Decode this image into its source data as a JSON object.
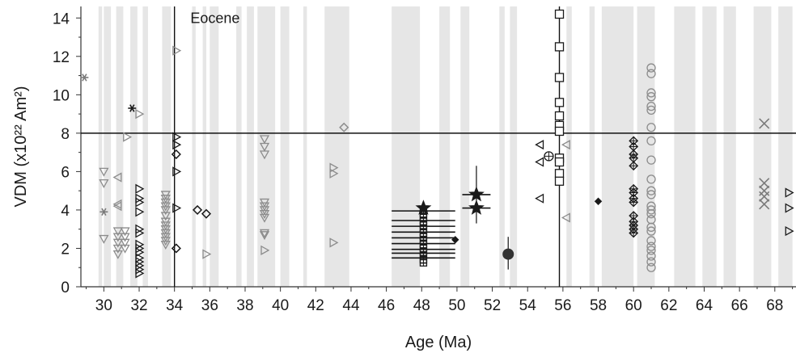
{
  "chart_data": {
    "type": "scatter",
    "xlabel": "Age (Ma)",
    "ylabel": "VDM (x10²² Am²)",
    "xlim": [
      28.7,
      69.2
    ],
    "ylim": [
      0,
      14.6
    ],
    "x_ticks": [
      30,
      32,
      34,
      36,
      38,
      40,
      42,
      44,
      46,
      48,
      50,
      52,
      54,
      56,
      58,
      60,
      62,
      64,
      66,
      68
    ],
    "y_ticks": [
      0,
      2,
      4,
      6,
      8,
      10,
      12,
      14
    ],
    "reference_lines": {
      "horizontal_y": 8,
      "vertical_x": [
        34,
        55.8
      ]
    },
    "annotations": [
      {
        "text": "Eocene",
        "x": 34.9,
        "y": 14.0
      }
    ],
    "bands": [
      [
        29.7,
        29.9
      ],
      [
        30.0,
        30.4
      ],
      [
        30.7,
        31.1
      ],
      [
        31.5,
        31.9
      ],
      [
        32.2,
        32.5
      ],
      [
        33.3,
        33.8
      ],
      [
        35.0,
        35.2
      ],
      [
        35.6,
        35.8
      ],
      [
        36.0,
        36.5
      ],
      [
        37.5,
        37.8
      ],
      [
        38.1,
        38.5
      ],
      [
        38.7,
        39.7
      ],
      [
        40.0,
        40.5
      ],
      [
        41.3,
        41.5
      ],
      [
        42.5,
        43.9
      ],
      [
        46.3,
        47.9
      ],
      [
        49.0,
        49.6
      ],
      [
        50.2,
        50.7
      ],
      [
        52.4,
        52.7
      ],
      [
        53.0,
        53.4
      ],
      [
        56.2,
        56.5
      ],
      [
        57.5,
        57.8
      ],
      [
        58.2,
        60.0
      ],
      [
        60.2,
        61.2
      ],
      [
        62.3,
        63.5
      ],
      [
        63.9,
        64.7
      ],
      [
        65.1,
        65.8
      ],
      [
        66.8,
        67.8
      ],
      [
        68.2,
        69.0
      ]
    ],
    "series": [
      {
        "marker": "asterisk",
        "color": "#7a7a7a",
        "points": [
          [
            28.9,
            10.9
          ],
          [
            30.0,
            3.9
          ]
        ]
      },
      {
        "marker": "asterisk",
        "color": "#1a1a1a",
        "points": [
          [
            31.6,
            9.3
          ]
        ]
      },
      {
        "marker": "tri-down",
        "color": "#8c8c8c",
        "points": [
          [
            30.0,
            6.0
          ],
          [
            30.0,
            5.4
          ],
          [
            30.0,
            2.5
          ],
          [
            30.8,
            2.9
          ],
          [
            30.8,
            2.6
          ],
          [
            30.8,
            2.3
          ],
          [
            30.8,
            2.0
          ],
          [
            30.8,
            1.7
          ],
          [
            31.2,
            2.9
          ],
          [
            31.2,
            2.6
          ],
          [
            31.2,
            2.3
          ],
          [
            31.2,
            2.0
          ],
          [
            33.5,
            4.8
          ],
          [
            33.5,
            4.6
          ],
          [
            33.5,
            4.4
          ],
          [
            33.5,
            4.2
          ],
          [
            33.5,
            4.0
          ],
          [
            33.5,
            3.7
          ],
          [
            33.5,
            3.4
          ],
          [
            33.5,
            3.2
          ],
          [
            33.5,
            3.0
          ],
          [
            33.5,
            2.8
          ],
          [
            33.5,
            2.6
          ],
          [
            33.5,
            2.4
          ],
          [
            33.5,
            2.2
          ],
          [
            39.1,
            7.7
          ],
          [
            39.1,
            7.3
          ],
          [
            39.1,
            6.9
          ],
          [
            39.1,
            4.4
          ],
          [
            39.1,
            4.2
          ],
          [
            39.1,
            4.0
          ],
          [
            39.1,
            3.8
          ],
          [
            39.1,
            3.6
          ],
          [
            39.1,
            2.8
          ],
          [
            39.1,
            2.7
          ]
        ]
      },
      {
        "marker": "tri-left",
        "color": "#8c8c8c",
        "points": [
          [
            30.8,
            5.7
          ],
          [
            30.8,
            4.3
          ],
          [
            30.8,
            4.2
          ],
          [
            56.2,
            7.4
          ],
          [
            56.2,
            3.6
          ]
        ]
      },
      {
        "marker": "tri-right",
        "color": "#8c8c8c",
        "points": [
          [
            31.3,
            7.8
          ],
          [
            32.0,
            9.0
          ],
          [
            34.1,
            12.3
          ],
          [
            35.8,
            1.7
          ],
          [
            39.1,
            1.9
          ],
          [
            43.0,
            6.2
          ],
          [
            43.0,
            5.9
          ],
          [
            43.0,
            2.3
          ]
        ]
      },
      {
        "marker": "tri-right",
        "color": "#1a1a1a",
        "points": [
          [
            32.0,
            5.1
          ],
          [
            32.0,
            4.6
          ],
          [
            32.0,
            4.4
          ],
          [
            32.0,
            3.9
          ],
          [
            32.0,
            3.0
          ],
          [
            32.0,
            2.8
          ],
          [
            32.0,
            2.2
          ],
          [
            32.0,
            2.0
          ],
          [
            32.0,
            1.8
          ],
          [
            32.0,
            1.5
          ],
          [
            32.0,
            1.3
          ],
          [
            32.0,
            1.1
          ],
          [
            32.0,
            0.9
          ],
          [
            32.0,
            0.7
          ],
          [
            34.1,
            7.8
          ],
          [
            34.1,
            7.4
          ],
          [
            34.1,
            6.0
          ],
          [
            34.1,
            4.1
          ]
        ]
      },
      {
        "marker": "tri-left",
        "color": "#1a1a1a",
        "points": [
          [
            54.7,
            7.4
          ],
          [
            54.7,
            6.5
          ],
          [
            54.7,
            4.6
          ]
        ]
      },
      {
        "marker": "tri-right",
        "color": "#1a1a1a",
        "points": [
          [
            68.8,
            4.9
          ],
          [
            68.8,
            4.1
          ],
          [
            68.8,
            2.9
          ]
        ]
      },
      {
        "marker": "diamond-open",
        "color": "#1a1a1a",
        "points": [
          [
            34.1,
            6.9
          ],
          [
            34.1,
            2.0
          ],
          [
            35.3,
            4.0
          ],
          [
            35.8,
            3.8
          ]
        ]
      },
      {
        "marker": "diamond-open",
        "color": "#8c8c8c",
        "points": [
          [
            43.6,
            8.3
          ]
        ]
      },
      {
        "marker": "square-plus",
        "color": "#1a1a1a",
        "points": [
          [
            48.1,
            4.0
          ],
          [
            48.1,
            3.8
          ],
          [
            48.1,
            3.6
          ],
          [
            48.1,
            3.4
          ],
          [
            48.1,
            3.2
          ],
          [
            48.1,
            3.0
          ],
          [
            48.1,
            2.8
          ],
          [
            48.1,
            2.6
          ],
          [
            48.1,
            2.4
          ],
          [
            48.1,
            2.2
          ],
          [
            48.1,
            2.0
          ],
          [
            48.1,
            1.8
          ],
          [
            48.1,
            1.6
          ],
          [
            48.1,
            1.4
          ],
          [
            48.1,
            1.25
          ]
        ]
      },
      {
        "marker": "star",
        "color": "#1a1a1a",
        "points": [
          [
            48.1,
            4.1
          ],
          [
            51.1,
            4.8
          ],
          [
            51.1,
            4.1
          ]
        ]
      },
      {
        "marker": "diamond-filled",
        "color": "#1a1a1a",
        "points": [
          [
            49.9,
            2.45
          ],
          [
            58.0,
            4.45
          ]
        ]
      },
      {
        "marker": "circle-filled",
        "color": "#333333",
        "points": [
          [
            52.9,
            1.7
          ]
        ]
      },
      {
        "marker": "circle-plus",
        "color": "#1a1a1a",
        "points": [
          [
            55.2,
            6.8
          ]
        ]
      },
      {
        "marker": "square-open",
        "color": "#1a1a1a",
        "points": [
          [
            55.8,
            14.2
          ],
          [
            55.8,
            12.5
          ],
          [
            55.8,
            10.9
          ],
          [
            55.8,
            9.6
          ],
          [
            55.8,
            8.9
          ],
          [
            55.8,
            8.4
          ],
          [
            55.8,
            8.1
          ],
          [
            55.8,
            6.7
          ],
          [
            55.8,
            6.5
          ],
          [
            55.8,
            5.9
          ],
          [
            55.8,
            5.5
          ]
        ]
      },
      {
        "marker": "diamond-plus",
        "color": "#1a1a1a",
        "points": [
          [
            60.0,
            7.6
          ],
          [
            60.0,
            7.3
          ],
          [
            60.0,
            6.9
          ],
          [
            60.0,
            6.7
          ],
          [
            60.0,
            6.3
          ],
          [
            60.0,
            5.1
          ],
          [
            60.0,
            4.9
          ],
          [
            60.0,
            4.6
          ],
          [
            60.0,
            4.4
          ],
          [
            60.0,
            3.7
          ],
          [
            60.0,
            3.4
          ],
          [
            60.0,
            3.2
          ],
          [
            60.0,
            3.0
          ],
          [
            60.0,
            2.8
          ]
        ]
      },
      {
        "marker": "circle-open",
        "color": "#8c8c8c",
        "points": [
          [
            61.0,
            11.4
          ],
          [
            61.0,
            11.1
          ],
          [
            61.0,
            10.1
          ],
          [
            61.0,
            9.9
          ],
          [
            61.0,
            9.4
          ],
          [
            61.0,
            9.2
          ],
          [
            61.0,
            8.3
          ],
          [
            61.0,
            7.6
          ],
          [
            61.0,
            6.6
          ],
          [
            61.0,
            5.6
          ],
          [
            61.0,
            5.0
          ],
          [
            61.0,
            4.8
          ],
          [
            61.0,
            4.2
          ],
          [
            61.0,
            4.0
          ],
          [
            61.0,
            3.8
          ],
          [
            61.0,
            3.5
          ],
          [
            61.0,
            3.1
          ],
          [
            61.0,
            2.9
          ],
          [
            61.0,
            2.4
          ],
          [
            61.0,
            2.1
          ],
          [
            61.0,
            1.9
          ],
          [
            61.0,
            1.6
          ],
          [
            61.0,
            1.3
          ],
          [
            61.0,
            1.0
          ]
        ]
      },
      {
        "marker": "cross",
        "color": "#7a7a7a",
        "points": [
          [
            67.4,
            8.5
          ],
          [
            67.4,
            5.4
          ],
          [
            67.4,
            5.0
          ],
          [
            67.4,
            4.7
          ],
          [
            67.4,
            4.3
          ]
        ]
      }
    ],
    "error_bars": [
      {
        "x": 48.1,
        "y": 3.95,
        "xmin": 46.3,
        "xmax": 49.9
      },
      {
        "x": 48.1,
        "y": 3.45,
        "xmin": 46.3,
        "xmax": 49.9
      },
      {
        "x": 48.1,
        "y": 3.15,
        "xmin": 46.3,
        "xmax": 49.9
      },
      {
        "x": 48.1,
        "y": 2.85,
        "xmin": 46.3,
        "xmax": 49.9
      },
      {
        "x": 48.1,
        "y": 2.55,
        "xmin": 46.3,
        "xmax": 49.9
      },
      {
        "x": 48.1,
        "y": 2.25,
        "xmin": 46.3,
        "xmax": 49.9
      },
      {
        "x": 48.1,
        "y": 1.95,
        "xmin": 46.3,
        "xmax": 49.9
      },
      {
        "x": 48.1,
        "y": 1.75,
        "xmin": 46.3,
        "xmax": 49.9
      },
      {
        "x": 48.1,
        "y": 1.5,
        "xmin": 46.3,
        "xmax": 49.9
      },
      {
        "x": 51.1,
        "y": 4.8,
        "xmin": 50.3,
        "xmax": 51.9,
        "ymin": 3.3,
        "ymax": 6.3
      },
      {
        "x": 51.1,
        "y": 4.1,
        "xmin": 50.3,
        "xmax": 51.9
      },
      {
        "x": 52.9,
        "y": 1.7,
        "ymin": 0.9,
        "ymax": 2.6
      }
    ]
  }
}
